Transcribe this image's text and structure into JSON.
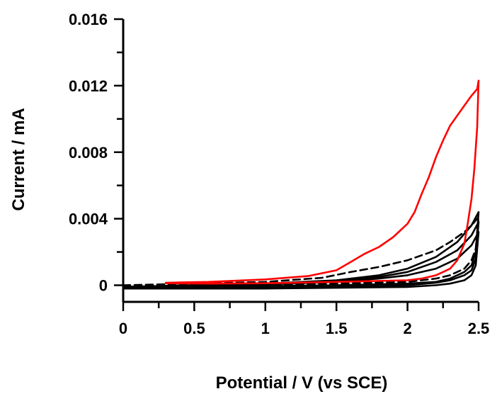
{
  "chart_data": {
    "type": "line",
    "xlabel": "Potential / V (vs SCE)",
    "ylabel": "Current / mA",
    "xlim": [
      0,
      2.5
    ],
    "ylim": [
      -0.001,
      0.016
    ],
    "x_ticks": [
      {
        "value": 0,
        "label": "0"
      },
      {
        "value": 0.5,
        "label": "0.5"
      },
      {
        "value": 1,
        "label": "1"
      },
      {
        "value": 1.5,
        "label": "1.5"
      },
      {
        "value": 2,
        "label": "2"
      },
      {
        "value": 2.5,
        "label": "2.5"
      }
    ],
    "x_minor_ticks": [
      0.25,
      0.75,
      1.25,
      1.75,
      2.25
    ],
    "y_ticks": [
      {
        "value": 0,
        "label": "0"
      },
      {
        "value": 0.004,
        "label": "0.004"
      },
      {
        "value": 0.008,
        "label": "0.008"
      },
      {
        "value": 0.012,
        "label": "0.012"
      },
      {
        "value": 0.016,
        "label": "0.016"
      }
    ],
    "y_minor_ticks": [
      0.002,
      0.006,
      0.01,
      0.014
    ],
    "grid": false,
    "legend": "none",
    "series": [
      {
        "color": "#ff0000",
        "style": "solid",
        "x": [
          0.3,
          0.6,
          1.0,
          1.3,
          1.5,
          1.6,
          1.7,
          1.8,
          1.9,
          2.0,
          2.05,
          2.1,
          2.15,
          2.2,
          2.25,
          2.3,
          2.4,
          2.45,
          2.49,
          2.5,
          2.49,
          2.47,
          2.45,
          2.42,
          2.4,
          2.35,
          2.3,
          2.25,
          2.2,
          2.1,
          2.0,
          1.5,
          1.0,
          0.6,
          0.3
        ],
        "y": [
          0.00015,
          0.0002,
          0.00035,
          0.00055,
          0.0009,
          0.0014,
          0.0019,
          0.0023,
          0.0029,
          0.0037,
          0.0044,
          0.0055,
          0.0065,
          0.0077,
          0.0087,
          0.0096,
          0.0108,
          0.0114,
          0.0118,
          0.0123,
          0.0095,
          0.007,
          0.0052,
          0.0035,
          0.0025,
          0.0015,
          0.001,
          0.0008,
          0.0006,
          0.0004,
          0.0003,
          0.0002,
          0.00012,
          0.0001,
          0.00012
        ]
      },
      {
        "color": "#000000",
        "style": "dashed",
        "x": [
          0.0,
          0.5,
          1.0,
          1.4,
          1.6,
          1.8,
          2.0,
          2.2,
          2.3,
          2.4,
          2.45,
          2.5,
          2.48,
          2.45,
          2.4,
          2.3,
          2.2,
          2.0,
          1.5,
          1.0,
          0.5,
          0.0
        ],
        "y": [
          0.0,
          0.0001,
          0.0002,
          0.00045,
          0.0008,
          0.0011,
          0.0015,
          0.0021,
          0.0026,
          0.0032,
          0.0036,
          0.0041,
          0.0022,
          0.0015,
          0.001,
          0.0006,
          0.0004,
          0.0002,
          0.0001,
          5e-05,
          0.0,
          -0.0001
        ]
      },
      {
        "color": "#000000",
        "style": "solid",
        "x": [
          0.0,
          0.5,
          1.0,
          1.5,
          1.8,
          2.0,
          2.2,
          2.35,
          2.45,
          2.5,
          2.48,
          2.45,
          2.4,
          2.3,
          2.2,
          2.0,
          1.5,
          1.0,
          0.5,
          0.0
        ],
        "y": [
          -0.00015,
          0.0,
          0.0001,
          0.0003,
          0.0006,
          0.001,
          0.0017,
          0.0026,
          0.0036,
          0.0044,
          0.002,
          0.0012,
          0.0008,
          0.0004,
          0.0002,
          0.0001,
          0.0,
          -5e-05,
          -0.0001,
          -0.0002
        ]
      },
      {
        "color": "#000000",
        "style": "solid",
        "x": [
          0.0,
          0.5,
          1.0,
          1.5,
          1.8,
          2.0,
          2.2,
          2.35,
          2.45,
          2.5,
          2.48,
          2.45,
          2.4,
          2.3,
          2.2,
          2.0,
          1.5,
          1.0,
          0.5,
          0.0
        ],
        "y": [
          -0.0001,
          0.0,
          0.0001,
          0.00025,
          0.0005,
          0.0008,
          0.0014,
          0.0021,
          0.003,
          0.0038,
          0.0016,
          0.0009,
          0.0006,
          0.0003,
          0.00015,
          0.0,
          -0.0001,
          -0.00012,
          -0.00015,
          -0.0002
        ]
      },
      {
        "color": "#000000",
        "style": "solid",
        "x": [
          0.0,
          0.5,
          1.0,
          1.5,
          1.8,
          2.0,
          2.2,
          2.35,
          2.45,
          2.5,
          2.48,
          2.45,
          2.4,
          2.3,
          2.2,
          2.0,
          1.5,
          1.0,
          0.5,
          0.0
        ],
        "y": [
          -0.0001,
          0.0,
          5e-05,
          0.0002,
          0.0004,
          0.0006,
          0.001,
          0.0016,
          0.0024,
          0.0032,
          0.0012,
          0.0006,
          0.0003,
          0.0001,
          0.0,
          -0.0001,
          -0.00015,
          -0.0002,
          -0.0002,
          -0.0002
        ]
      }
    ]
  }
}
